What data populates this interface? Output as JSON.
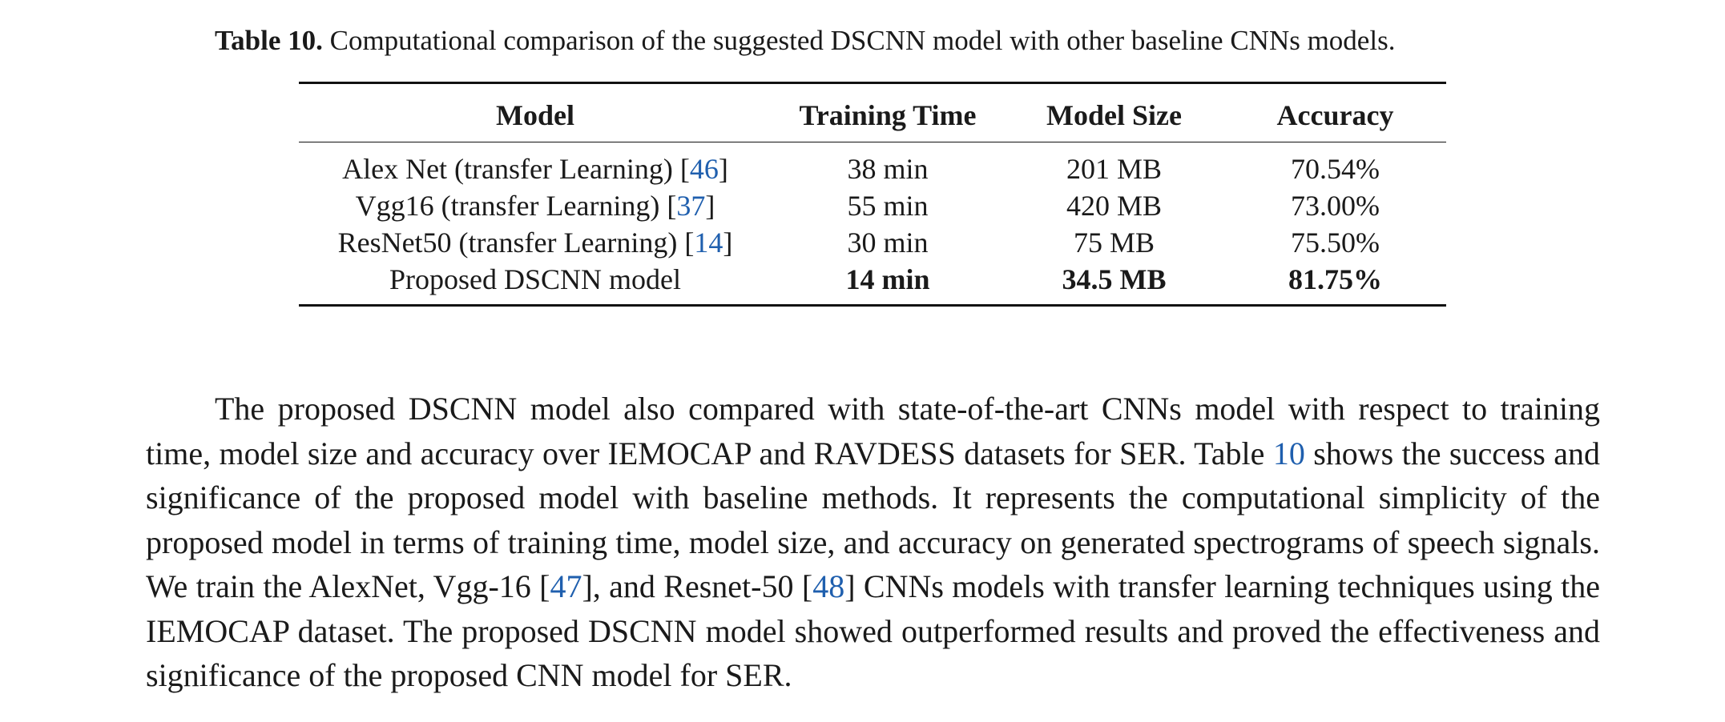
{
  "caption": {
    "label": "Table 10.",
    "text": "Computational comparison of the suggested DSCNN model with other baseline CNNs models."
  },
  "table": {
    "headers": [
      "Model",
      "Training Time",
      "Model Size",
      "Accuracy"
    ],
    "rows": [
      {
        "model": "Alex Net (transfer Learning) [",
        "ref": "46",
        "model_close": "]",
        "time": "38 min",
        "size": "201 MB",
        "accuracy": "70.54%"
      },
      {
        "model": "Vgg16 (transfer Learning) [",
        "ref": "37",
        "model_close": "]",
        "time": "55 min",
        "size": "420 MB",
        "accuracy": "73.00%"
      },
      {
        "model": "ResNet50 (transfer Learning) [",
        "ref": "14",
        "model_close": "]",
        "time": "30 min",
        "size": "75 MB",
        "accuracy": "75.50%"
      },
      {
        "model": "Proposed DSCNN model",
        "ref": "",
        "model_close": "",
        "time": "14 min",
        "size": "34.5 MB",
        "accuracy": "81.75%"
      }
    ]
  },
  "paragraph": {
    "s1": "The proposed DSCNN model also compared with state-of-the-art CNNs model with respect to training time, model size and accuracy over IEMOCAP and RAVDESS datasets for SER. Table ",
    "ref_table": "10",
    "s2": " shows the success and significance of the proposed model with baseline methods. It represents the computational simplicity of the proposed model in terms of training time, model size, and accuracy on generated spectrograms of speech signals. We train the AlexNet, Vgg-16 [",
    "ref_vgg": "47",
    "s3": "], and Resnet-50 [",
    "ref_resnet": "48",
    "s4": "] CNNs models with transfer learning techniques using the IEMOCAP dataset. The proposed DSCNN model showed outperformed results and proved the effectiveness and significance of the proposed CNN model for SER."
  }
}
